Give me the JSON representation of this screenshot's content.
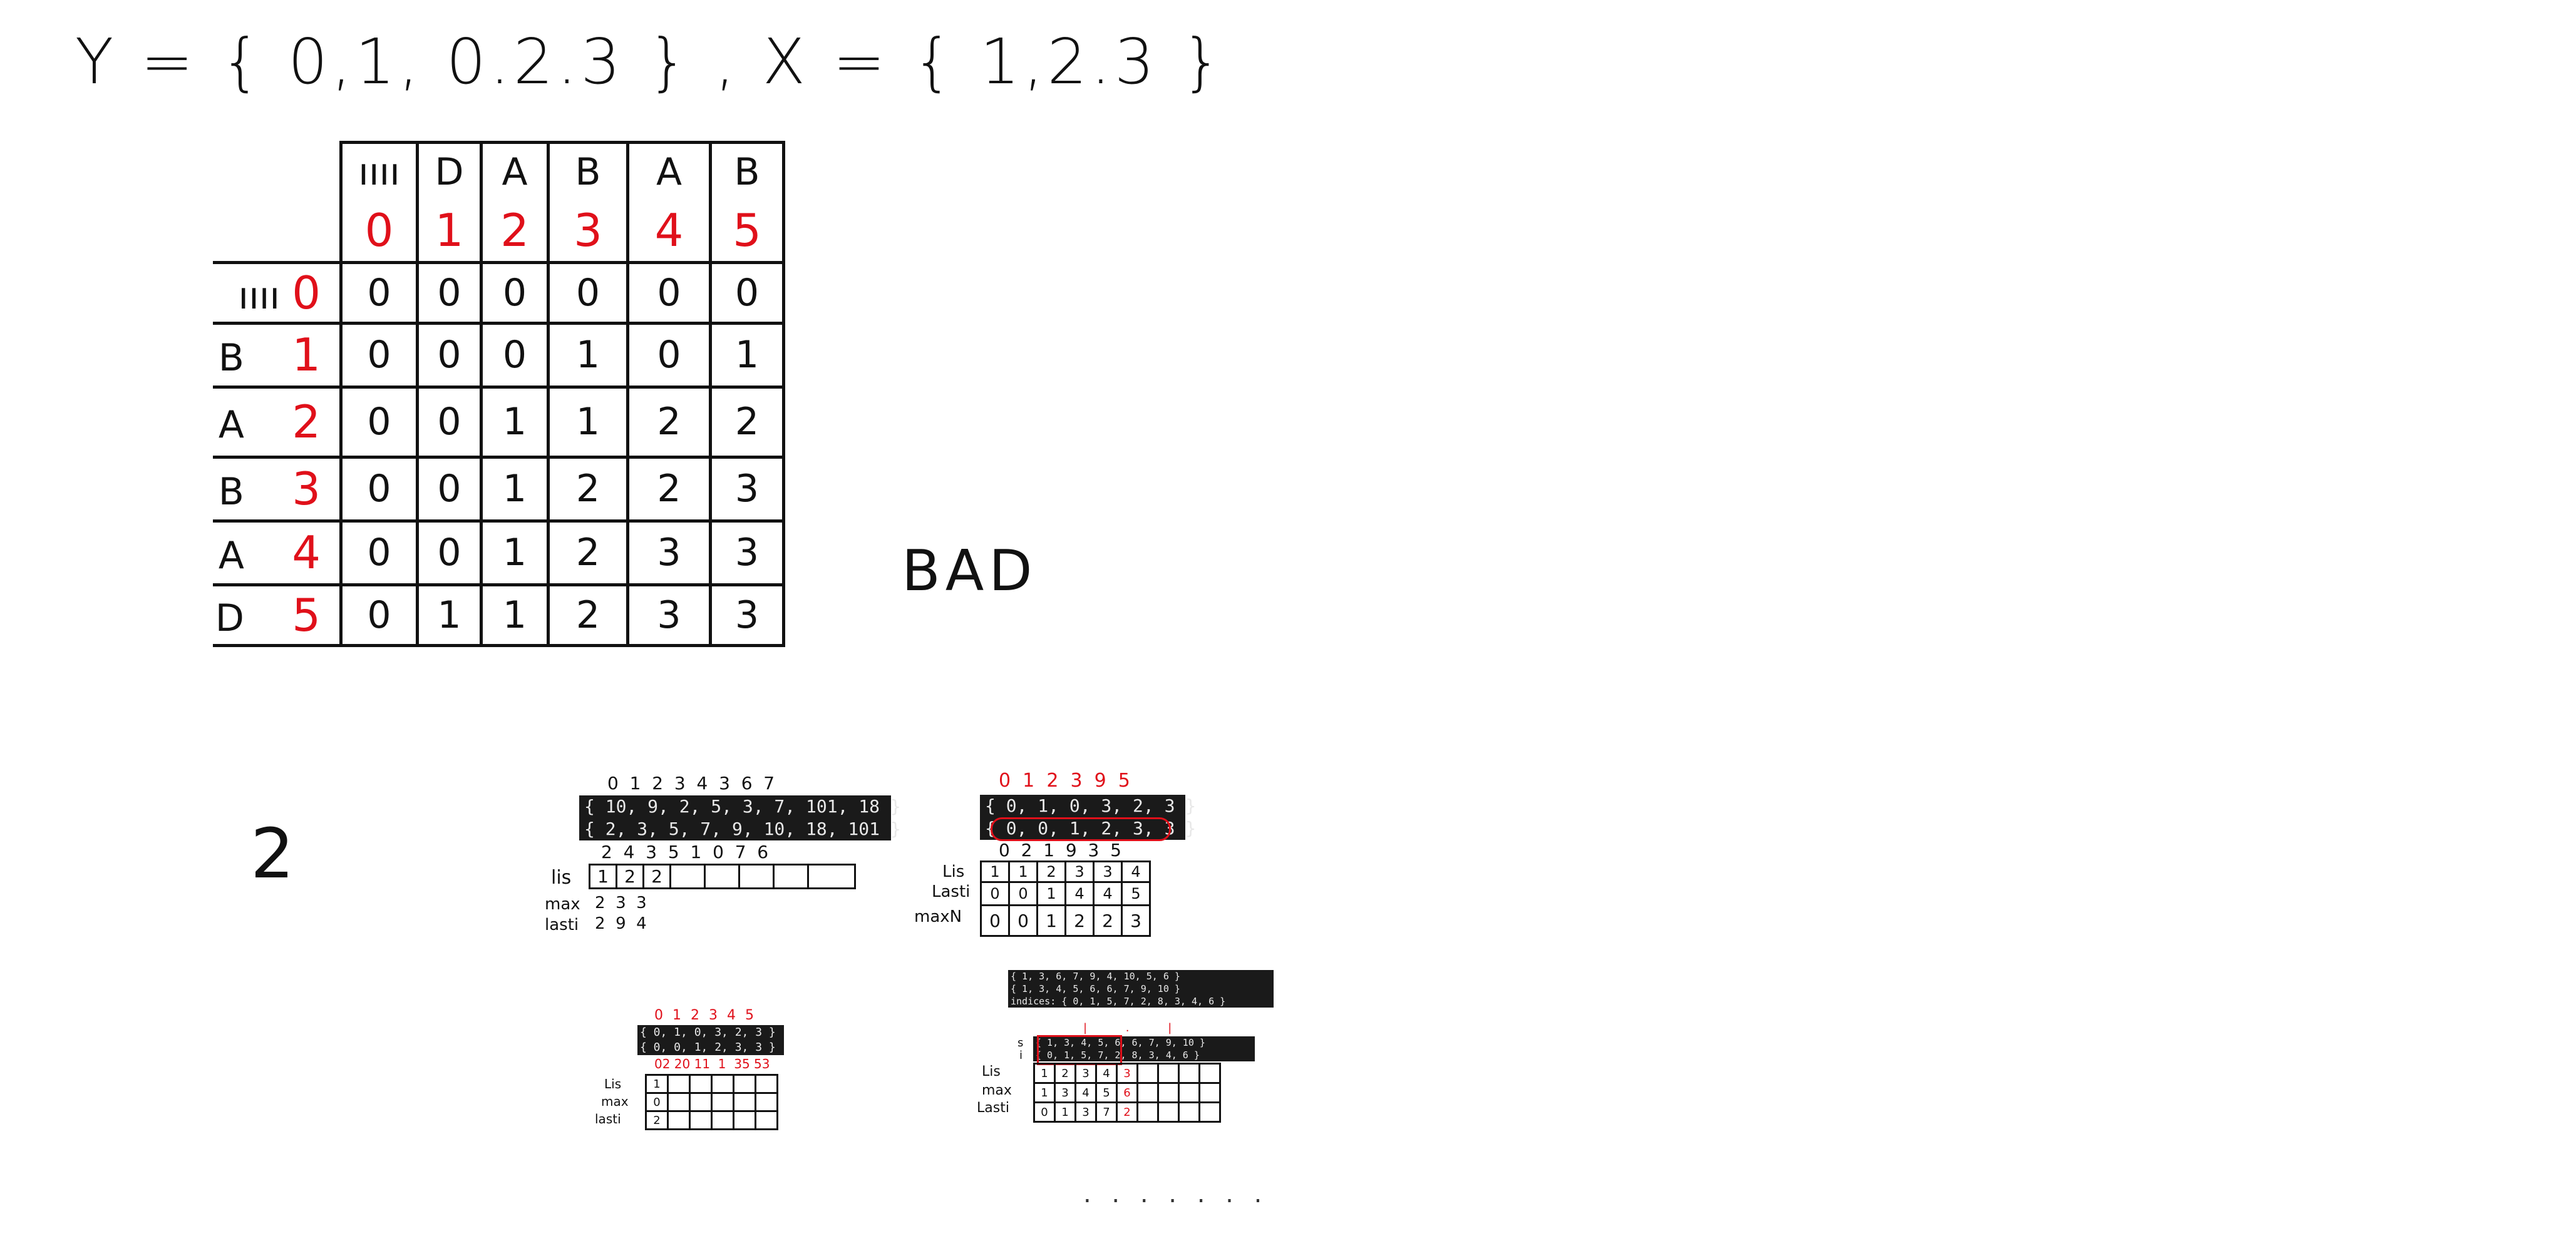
{
  "equation": "Y = { 0,1, 0.2.3 } , X = { 1,2.3 }",
  "lcs_table": {
    "col_letters": [
      "ıııı",
      "D",
      "A",
      "B",
      "A",
      "B"
    ],
    "col_indices": [
      "0",
      "1",
      "2",
      "3",
      "4",
      "5"
    ],
    "rows": [
      {
        "letter": "ıııı",
        "index": "0",
        "cells": [
          "0",
          "0",
          "0",
          "0",
          "0",
          "0"
        ]
      },
      {
        "letter": "B",
        "index": "1",
        "cells": [
          "0",
          "0",
          "0",
          "1",
          "0",
          "1"
        ]
      },
      {
        "letter": "A",
        "index": "2",
        "cells": [
          "0",
          "0",
          "1",
          "1",
          "2",
          "2"
        ]
      },
      {
        "letter": "B",
        "index": "3",
        "cells": [
          "0",
          "0",
          "1",
          "2",
          "2",
          "3"
        ]
      },
      {
        "letter": "A",
        "index": "4",
        "cells": [
          "0",
          "0",
          "1",
          "2",
          "3",
          "3"
        ]
      },
      {
        "letter": "D",
        "index": "5",
        "cells": [
          "0",
          "1",
          "1",
          "2",
          "3",
          "3"
        ]
      }
    ]
  },
  "result_text": "BAD",
  "side_number": "2",
  "panel1": {
    "top_indices": "0  1  2  3  4  3  6  7",
    "code_line1": "{ 10, 9, 2, 5, 3, 7, 101, 18 }",
    "code_line2": "{ 2, 3, 5, 7, 9, 10, 18, 101 }",
    "bottom_indices": "2  4  3  5  1  0  7  6",
    "lis_label": "lis",
    "lis_cells": [
      "1",
      "2",
      "2",
      "",
      "",
      "",
      "",
      ""
    ],
    "max_label": "max",
    "max_values": "2  3  3",
    "lasti_label": "lasti",
    "lasti_values": "2  9  4"
  },
  "panel2": {
    "top_indices": "0  1  2  3  9  5",
    "code_line1": "{ 0, 1, 0, 3, 2, 3 }",
    "code_line2": "{ 0, 0, 1, 2, 3, 3 }",
    "bottom_indices": "0  2  1  9  3  5",
    "lis_label": "Lis",
    "lis_cells": [
      "1",
      "1",
      "2",
      "3",
      "3",
      "4"
    ],
    "lasti_label": "Lasti",
    "lasti_cells": [
      "0",
      "0",
      "1",
      "4",
      "4",
      "5"
    ],
    "max_label": "maxN",
    "max_cells": [
      "0",
      "0",
      "1",
      "2",
      "2",
      "3"
    ]
  },
  "panel3": {
    "top_indices": "0 1 2 3 4 5",
    "code_line1": "{ 0, 1, 0, 3, 2, 3 }",
    "code_line2": "{ 0, 0, 1, 2, 3, 3 }",
    "bottom_indices": "02 20 11  1  35 53",
    "lis_label": "Lis",
    "lis_first": "1",
    "max_label": "max",
    "max_first": "0",
    "lasti_label": "lasti",
    "lasti_first": "2"
  },
  "panel4": {
    "code_line1": "{ 1, 3, 6, 7, 9, 4, 10, 5, 6 }",
    "code_line2": "{ 1, 3, 4, 5, 6, 6, 7, 9, 10 }",
    "code_line3": "indices: { 0, 1, 5, 7, 2, 8, 3, 4, 6 }",
    "code_line4": "{ 1, 3, 4, 5, 6, 6, 7, 9, 10 }",
    "code_line5": "{ 0, 1, 5, 7, 2, 8, 3, 4, 6 }",
    "row_s": "s",
    "row_i": "i",
    "lis_label": "Lis",
    "lis_cells": [
      "1",
      "2",
      "3",
      "4",
      "3"
    ],
    "max_label": "max",
    "max_cells": [
      "1",
      "3",
      "4",
      "5",
      "6"
    ],
    "lasti_label": "Lasti",
    "lasti_cells": [
      "0",
      "1",
      "3",
      "7",
      "2"
    ]
  },
  "trailing_dots": ". . . .   . . ."
}
